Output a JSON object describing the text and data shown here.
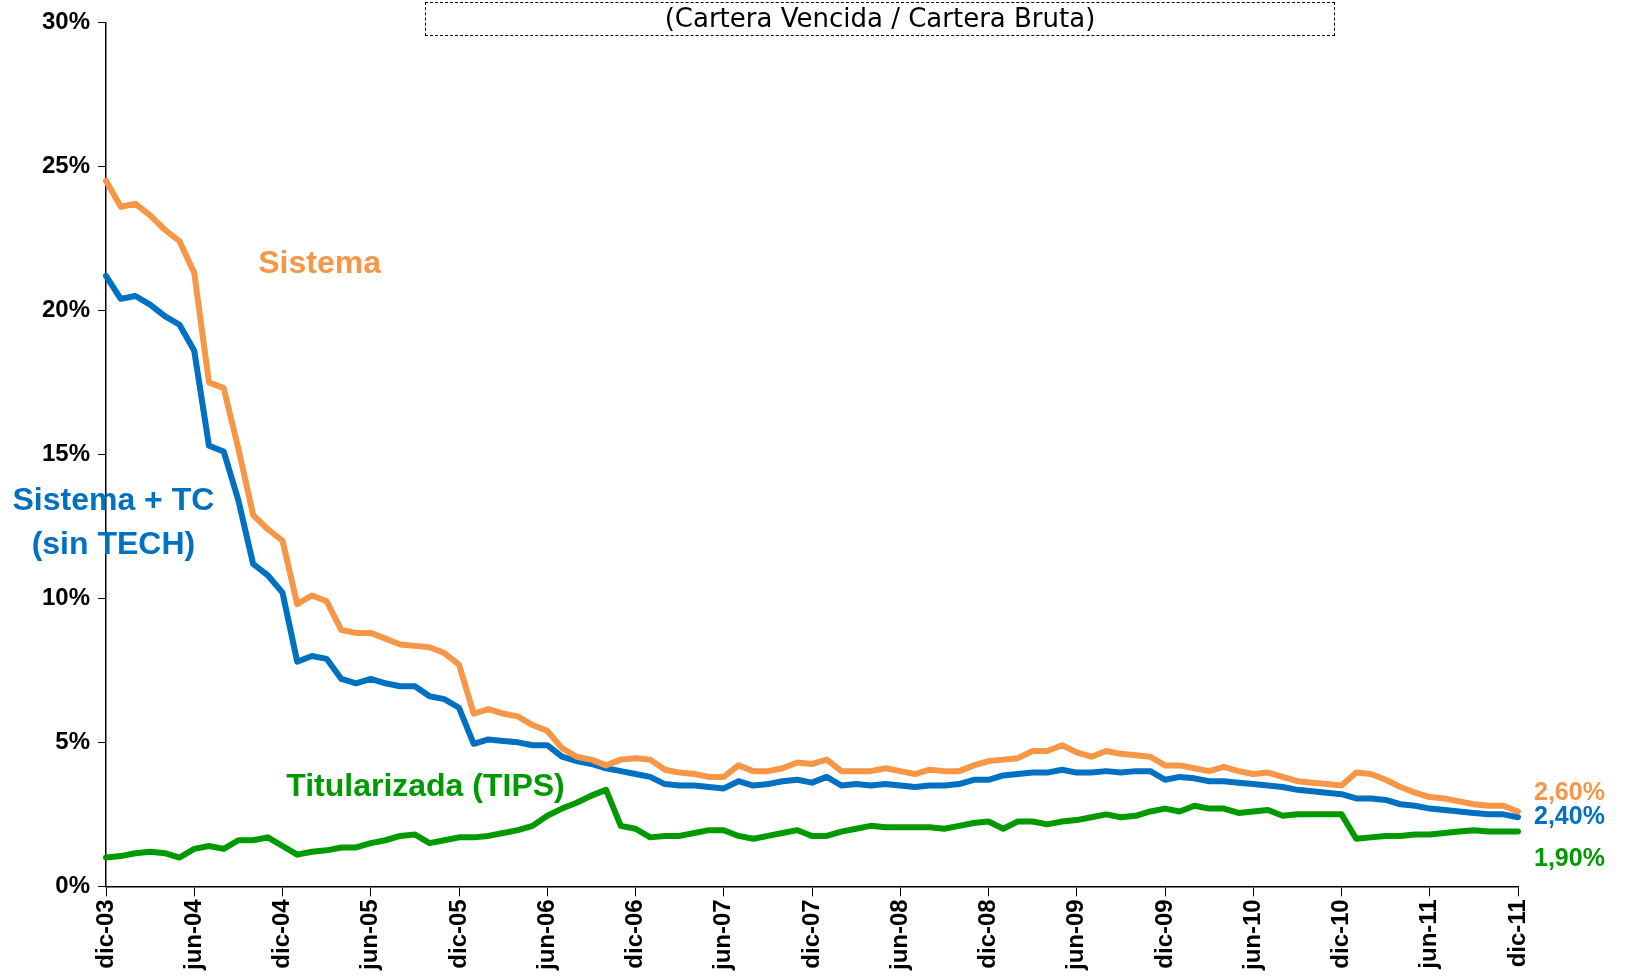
{
  "chart_data": {
    "type": "line",
    "title": "(Cartera Vencida / Cartera Bruta)",
    "categories": [
      "dic-03",
      null,
      null,
      null,
      null,
      null,
      "jun-04",
      null,
      null,
      null,
      null,
      null,
      "dic-04",
      null,
      null,
      null,
      null,
      null,
      "jun-05",
      null,
      null,
      null,
      null,
      null,
      "dic-05",
      null,
      null,
      null,
      null,
      null,
      "jun-06",
      null,
      null,
      null,
      null,
      null,
      "dic-06",
      null,
      null,
      null,
      null,
      null,
      "jun-07",
      null,
      null,
      null,
      null,
      null,
      "dic-07",
      null,
      null,
      null,
      null,
      null,
      "jun-08",
      null,
      null,
      null,
      null,
      null,
      "dic-08",
      null,
      null,
      null,
      null,
      null,
      "jun-09",
      null,
      null,
      null,
      null,
      null,
      "dic-09",
      null,
      null,
      null,
      null,
      null,
      "jun-10",
      null,
      null,
      null,
      null,
      null,
      "dic-10",
      null,
      null,
      null,
      null,
      null,
      "jun-11",
      null,
      null,
      null,
      null,
      null,
      "dic-11"
    ],
    "series": [
      {
        "name": "Sistema",
        "color": "#f79646",
        "values": [
          24.5,
          23.6,
          23.7,
          23.3,
          22.8,
          22.4,
          21.3,
          17.5,
          17.3,
          15.2,
          12.9,
          12.4,
          12.0,
          9.8,
          10.1,
          9.9,
          8.9,
          8.8,
          8.8,
          8.6,
          8.4,
          8.35,
          8.3,
          8.1,
          7.7,
          6.0,
          6.15,
          6.0,
          5.9,
          5.6,
          5.4,
          4.8,
          4.5,
          4.4,
          4.2,
          4.4,
          4.45,
          4.4,
          4.05,
          3.95,
          3.9,
          3.8,
          3.8,
          4.2,
          4.0,
          4.0,
          4.1,
          4.3,
          4.25,
          4.4,
          4.0,
          4.0,
          4.0,
          4.1,
          4.0,
          3.9,
          4.05,
          4.0,
          4.0,
          4.2,
          4.35,
          4.4,
          4.45,
          4.7,
          4.7,
          4.9,
          4.65,
          4.5,
          4.7,
          4.6,
          4.55,
          4.5,
          4.2,
          4.2,
          4.1,
          4.0,
          4.15,
          4.0,
          3.9,
          3.95,
          3.8,
          3.65,
          3.6,
          3.55,
          3.5,
          3.95,
          3.9,
          3.7,
          3.45,
          3.25,
          3.1,
          3.05,
          2.95,
          2.85,
          2.8,
          2.8,
          2.6
        ],
        "value_labels": [
          null,
          null,
          null,
          null,
          null,
          null,
          null,
          null,
          null,
          null,
          null,
          null,
          null,
          null,
          null,
          null,
          null,
          null,
          null,
          null,
          null,
          null,
          null,
          null,
          null,
          null,
          null,
          null,
          null,
          null,
          null,
          null,
          null,
          null,
          null,
          null,
          null,
          null,
          null,
          null,
          null,
          null,
          null,
          null,
          null,
          null,
          null,
          null,
          null,
          null,
          null,
          null,
          null,
          null,
          null,
          null,
          null,
          null,
          null,
          null,
          null,
          null,
          null,
          null,
          null,
          null,
          null,
          null,
          null,
          null,
          null,
          null,
          null,
          null,
          null,
          null,
          null,
          null,
          null,
          null,
          null,
          null,
          null,
          null,
          null,
          null,
          null,
          null,
          null,
          null,
          null,
          null,
          null,
          null,
          null,
          null,
          "2,60%"
        ]
      },
      {
        "name": "Sistema + TC (sin TECH)",
        "color": "#0070c0",
        "values": [
          21.2,
          20.4,
          20.5,
          20.2,
          19.8,
          19.5,
          18.6,
          15.3,
          15.1,
          13.4,
          11.2,
          10.8,
          10.2,
          7.8,
          8.0,
          7.9,
          7.2,
          7.05,
          7.2,
          7.05,
          6.95,
          6.95,
          6.6,
          6.5,
          6.2,
          4.95,
          5.1,
          5.05,
          5.0,
          4.9,
          4.9,
          4.5,
          4.35,
          4.25,
          4.1,
          4.0,
          3.9,
          3.8,
          3.55,
          3.5,
          3.5,
          3.45,
          3.4,
          3.65,
          3.5,
          3.55,
          3.65,
          3.7,
          3.6,
          3.8,
          3.5,
          3.55,
          3.5,
          3.55,
          3.5,
          3.45,
          3.5,
          3.5,
          3.55,
          3.7,
          3.7,
          3.85,
          3.9,
          3.95,
          3.95,
          4.05,
          3.95,
          3.95,
          4.0,
          3.95,
          4.0,
          4.0,
          3.7,
          3.8,
          3.75,
          3.65,
          3.65,
          3.6,
          3.55,
          3.5,
          3.45,
          3.35,
          3.3,
          3.25,
          3.2,
          3.05,
          3.05,
          3.0,
          2.85,
          2.8,
          2.7,
          2.65,
          2.6,
          2.55,
          2.5,
          2.5,
          2.4
        ],
        "value_labels": [
          null,
          null,
          null,
          null,
          null,
          null,
          null,
          null,
          null,
          null,
          null,
          null,
          null,
          null,
          null,
          null,
          null,
          null,
          null,
          null,
          null,
          null,
          null,
          null,
          null,
          null,
          null,
          null,
          null,
          null,
          null,
          null,
          null,
          null,
          null,
          null,
          null,
          null,
          null,
          null,
          null,
          null,
          null,
          null,
          null,
          null,
          null,
          null,
          null,
          null,
          null,
          null,
          null,
          null,
          null,
          null,
          null,
          null,
          null,
          null,
          null,
          null,
          null,
          null,
          null,
          null,
          null,
          null,
          null,
          null,
          null,
          null,
          null,
          null,
          null,
          null,
          null,
          null,
          null,
          null,
          null,
          null,
          null,
          null,
          null,
          null,
          null,
          null,
          null,
          null,
          null,
          null,
          null,
          null,
          null,
          null,
          "2,40%"
        ]
      },
      {
        "name": "Titularizada (TIPS)",
        "color": "#009900",
        "values": [
          1.0,
          1.05,
          1.15,
          1.2,
          1.15,
          1.0,
          1.3,
          1.4,
          1.3,
          1.6,
          1.6,
          1.7,
          1.4,
          1.1,
          1.2,
          1.25,
          1.35,
          1.35,
          1.5,
          1.6,
          1.75,
          1.8,
          1.5,
          1.6,
          1.7,
          1.7,
          1.75,
          1.85,
          1.95,
          2.1,
          2.45,
          2.7,
          2.9,
          3.15,
          3.35,
          2.1,
          2.0,
          1.7,
          1.75,
          1.75,
          1.85,
          1.95,
          1.95,
          1.75,
          1.65,
          1.75,
          1.85,
          1.95,
          1.75,
          1.75,
          1.9,
          2.0,
          2.1,
          2.05,
          2.05,
          2.05,
          2.05,
          2.0,
          2.1,
          2.2,
          2.25,
          2.0,
          2.25,
          2.25,
          2.15,
          2.25,
          2.3,
          2.4,
          2.5,
          2.4,
          2.45,
          2.6,
          2.7,
          2.6,
          2.8,
          2.7,
          2.7,
          2.55,
          2.6,
          2.65,
          2.45,
          2.5,
          2.5,
          2.5,
          2.5,
          1.65,
          1.7,
          1.75,
          1.75,
          1.8,
          1.8,
          1.85,
          1.9,
          1.95,
          1.9,
          1.9,
          1.9
        ],
        "value_labels": [
          null,
          null,
          null,
          null,
          null,
          null,
          null,
          null,
          null,
          null,
          null,
          null,
          null,
          null,
          null,
          null,
          null,
          null,
          null,
          null,
          null,
          null,
          null,
          null,
          null,
          null,
          null,
          null,
          null,
          null,
          null,
          null,
          null,
          null,
          null,
          null,
          null,
          null,
          null,
          null,
          null,
          null,
          null,
          null,
          null,
          null,
          null,
          null,
          null,
          null,
          null,
          null,
          null,
          null,
          null,
          null,
          null,
          null,
          null,
          null,
          null,
          null,
          null,
          null,
          null,
          null,
          null,
          null,
          null,
          null,
          null,
          null,
          null,
          null,
          null,
          null,
          null,
          null,
          null,
          null,
          null,
          null,
          null,
          null,
          null,
          null,
          null,
          null,
          null,
          null,
          null,
          null,
          null,
          null,
          null,
          null,
          "1,90%"
        ]
      }
    ],
    "ylim": [
      0,
      30
    ],
    "yticks": [
      {
        "value": 0,
        "label": "0%"
      },
      {
        "value": 5,
        "label": "5%"
      },
      {
        "value": 10,
        "label": "10%"
      },
      {
        "value": 15,
        "label": "15%"
      },
      {
        "value": 20,
        "label": "20%"
      },
      {
        "value": 25,
        "label": "25%"
      },
      {
        "value": 30,
        "label": "30%"
      }
    ],
    "grid": false,
    "legend": false,
    "marker": "none",
    "line_style": "solid"
  }
}
